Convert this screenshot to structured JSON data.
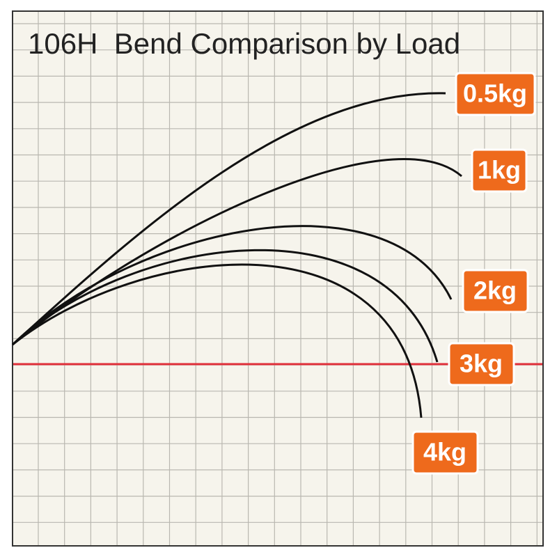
{
  "title": "106H  Bend Comparison by Load",
  "labels": [
    "0.5kg",
    "1kg",
    "2kg",
    "3kg",
    "4kg"
  ]
}
